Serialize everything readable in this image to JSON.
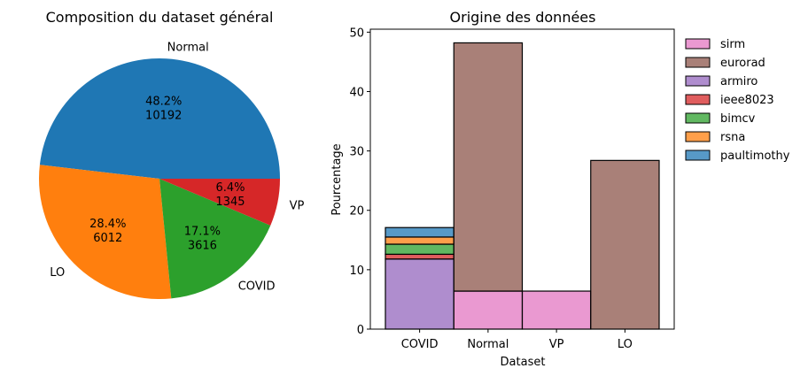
{
  "chart_data": [
    {
      "type": "pie",
      "title": "Composition du dataset général",
      "slices": [
        {
          "label": "Normal",
          "percent": "48.2%",
          "count": "10192",
          "value": 10192,
          "color": "#1f77b4"
        },
        {
          "label": "LO",
          "percent": "28.4%",
          "count": "6012",
          "value": 6012,
          "color": "#ff7f0e"
        },
        {
          "label": "COVID",
          "percent": "17.1%",
          "count": "3616",
          "value": 3616,
          "color": "#2ca02c"
        },
        {
          "label": "VP",
          "percent": "6.4%",
          "count": "1345",
          "value": 1345,
          "color": "#d62728"
        }
      ]
    },
    {
      "type": "bar",
      "stacked": true,
      "title": "Origine des données",
      "xlabel": "Dataset",
      "ylabel": "Pourcentage",
      "ylim": [
        0,
        50.5
      ],
      "yticks": [
        0,
        10,
        20,
        30,
        40,
        50
      ],
      "categories": [
        "COVID",
        "Normal",
        "VP",
        "LO"
      ],
      "legend_position": "outside-right-top",
      "series": [
        {
          "name": "sirm",
          "color": "#e377c2",
          "values": [
            0,
            6.4,
            6.4,
            0
          ]
        },
        {
          "name": "eurorad",
          "color": "#8c564b",
          "values": [
            0,
            41.8,
            0,
            28.4
          ]
        },
        {
          "name": "armiro",
          "color": "#9467bd",
          "values": [
            11.8,
            0,
            0,
            0
          ]
        },
        {
          "name": "ieee8023",
          "color": "#d62728",
          "values": [
            0.8,
            0,
            0,
            0
          ]
        },
        {
          "name": "bimcv",
          "color": "#2ca02c",
          "values": [
            1.7,
            0,
            0,
            0
          ]
        },
        {
          "name": "rsna",
          "color": "#ff7f0e",
          "values": [
            1.2,
            0,
            0,
            0
          ]
        },
        {
          "name": "paultimothy",
          "color": "#1f77b4",
          "values": [
            1.6,
            0,
            0,
            0
          ]
        }
      ]
    }
  ]
}
